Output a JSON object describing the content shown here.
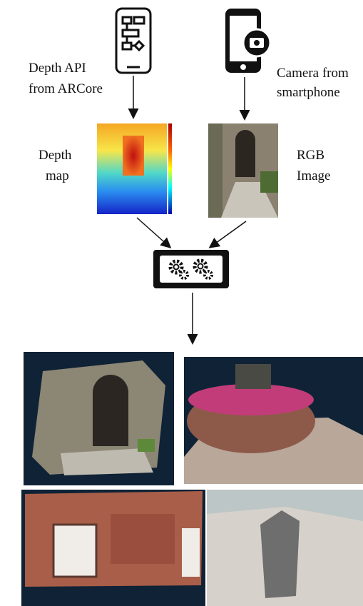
{
  "labels": {
    "depth_api": [
      "Depth API",
      "from ARCore"
    ],
    "camera": [
      "Camera from",
      "smartphone"
    ],
    "depth_map": [
      "Depth",
      "map"
    ],
    "rgb_image": [
      "RGB",
      "Image"
    ]
  }
}
